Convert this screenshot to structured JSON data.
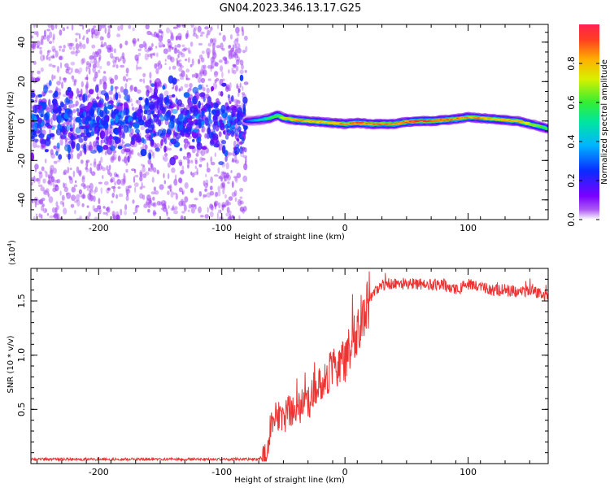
{
  "title": "GN04.2023.346.13.17.G25",
  "colors": {
    "snr_line": "#ee3333",
    "colormap": [
      "#ffffff",
      "#ad5cf2",
      "#7a00ff",
      "#0a2cff",
      "#00b4ff",
      "#00e6a0",
      "#33ee33",
      "#d8f000",
      "#ffb000",
      "#ff4020",
      "#ff2050"
    ]
  },
  "chart_data": [
    {
      "type": "heatmap",
      "xlabel": "Height of straight line (km)",
      "ylabel": "Frequency (Hz)",
      "xlim": [
        -255,
        165
      ],
      "ylim": [
        -50,
        49
      ],
      "xticks": [
        -200,
        -100,
        0,
        100
      ],
      "yticks": [
        -40,
        -20,
        0,
        20,
        40
      ],
      "grid": false,
      "noise_region_x": [
        -255,
        -80
      ],
      "ridge": {
        "x": [
          -80,
          -70,
          -60,
          -55,
          -50,
          -40,
          -30,
          -20,
          -10,
          0,
          10,
          20,
          30,
          40,
          50,
          60,
          70,
          80,
          90,
          100,
          110,
          120,
          130,
          140,
          150,
          160,
          165
        ],
        "freq_hz": [
          0,
          0.5,
          1.5,
          3,
          1.5,
          0.5,
          0,
          -0.5,
          -1,
          -1.5,
          -1,
          -1.5,
          -1.5,
          -1.5,
          -0.5,
          0,
          0,
          0.5,
          1,
          2,
          1.5,
          1,
          0.5,
          0,
          -1.5,
          -3,
          -4
        ],
        "amplitude": [
          0.25,
          0.4,
          0.55,
          0.6,
          0.7,
          0.85,
          0.85,
          0.8,
          0.8,
          0.85,
          0.9,
          0.9,
          0.9,
          0.85,
          0.9,
          0.95,
          0.95,
          0.9,
          0.9,
          0.85,
          0.85,
          0.8,
          0.8,
          0.85,
          0.7,
          0.6,
          0.55
        ]
      },
      "colorbar": {
        "label": "Normalized spectral amplitude",
        "range": [
          0,
          1
        ],
        "ticks": [
          0.0,
          0.2,
          0.4,
          0.6,
          0.8
        ]
      }
    },
    {
      "type": "line",
      "xlabel": "Height of straight line (km)",
      "ylabel": "SNR (10 * v/v)",
      "y_multiplier": "(x10",
      "y_multiplier_exp": "4",
      "y_multiplier_close": ")",
      "xlim": [
        -255,
        165
      ],
      "ylim": [
        0,
        1.8
      ],
      "xticks": [
        -200,
        -100,
        0,
        100
      ],
      "yticks": [
        0.5,
        1.0,
        1.5
      ],
      "ytick_labels": [
        "0.5",
        "1.0",
        "1.5"
      ],
      "grid": false,
      "series": [
        {
          "x": [
            -255,
            -200,
            -150,
            -100,
            -70,
            -63,
            -60,
            -55,
            -50,
            -45,
            -40,
            -35,
            -30,
            -25,
            -20,
            -15,
            -10,
            -5,
            0,
            5,
            10,
            15,
            20,
            25,
            30,
            40,
            50,
            60,
            70,
            80,
            90,
            100,
            110,
            120,
            130,
            140,
            150,
            160,
            165
          ],
          "y": [
            0.04,
            0.04,
            0.04,
            0.04,
            0.04,
            0.1,
            0.4,
            0.45,
            0.4,
            0.5,
            0.45,
            0.55,
            0.55,
            0.65,
            0.75,
            0.8,
            0.9,
            0.9,
            0.95,
            1.1,
            1.2,
            1.4,
            1.5,
            1.6,
            1.65,
            1.66,
            1.66,
            1.65,
            1.65,
            1.65,
            1.6,
            1.65,
            1.63,
            1.6,
            1.6,
            1.58,
            1.6,
            1.56,
            1.55
          ]
        }
      ]
    }
  ]
}
